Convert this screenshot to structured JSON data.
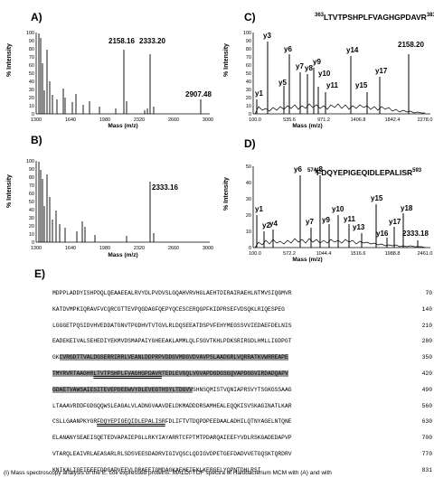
{
  "panels": {
    "A": {
      "letter": "A)",
      "ylabel": "% Intensity",
      "xlabel": "Mass (m/z)",
      "xticks": [
        "1300",
        "1640",
        "1980",
        "2320",
        "2660",
        "3000"
      ],
      "yticks": [
        "0",
        "10",
        "20",
        "30",
        "40",
        "50",
        "60",
        "70",
        "80",
        "90",
        "100"
      ],
      "labels": [
        "2158.16",
        "2333.20",
        "2907.48"
      ]
    },
    "B": {
      "letter": "B)",
      "ylabel": "% Intensity",
      "xlabel": "Mass (m/z)",
      "xticks": [
        "1300",
        "1640",
        "1980",
        "2320",
        "2660",
        "3000"
      ],
      "yticks": [
        "0",
        "10",
        "20",
        "30",
        "40",
        "50",
        "60",
        "70",
        "80",
        "90",
        "100"
      ],
      "labels": [
        "2333.16"
      ]
    },
    "C": {
      "letter": "C)",
      "title_start": "363",
      "title_seq": "LTVTPSHPLFVAGHGPDAVR",
      "title_end": "383",
      "ylabel": "% Intensity",
      "xlabel": "Mass (m/z)",
      "xticks": [
        "100.0",
        "535.6",
        "971.2",
        "1406.8",
        "1842.4",
        "2278.0"
      ],
      "yticks": [
        "0",
        "10",
        "20",
        "30",
        "40",
        "50",
        "60",
        "70",
        "80",
        "90",
        "100"
      ],
      "labels": [
        "y1",
        "y3",
        "y5",
        "y6",
        "y7",
        "y8",
        "y9",
        "y10",
        "y11",
        "y14",
        "y15",
        "y17",
        "2158.20"
      ]
    },
    "D": {
      "letter": "D)",
      "title_start": "574",
      "title_seq": "FDQYEPIGEQIDLEPALISR",
      "title_end": "593",
      "ylabel": "% Intensity",
      "xlabel": "Mass (m/z)",
      "xticks": [
        "100.0",
        "572.2",
        "1044.4",
        "1516.6",
        "1988.8",
        "2461.0"
      ],
      "yticks": [
        "0",
        "10",
        "20",
        "30",
        "40",
        "50"
      ],
      "labels": [
        "y1",
        "y2",
        "y4",
        "y6",
        "y7",
        "y8",
        "y9",
        "y10",
        "y11",
        "y13",
        "y15",
        "y16",
        "y17",
        "y18",
        "2333.18"
      ]
    }
  },
  "sequence": {
    "letter": "E)",
    "lines": [
      {
        "text": "MDPPLADDYISHPDQLQEAAEEALRVYDLPVDVSLGQAHVRVHGLAEHTDIRAIRAEHLNTMVSIQGMVR",
        "num": "70"
      },
      {
        "text": "KATDVMPKIQRAVFVCQRCGTTEVPQGDAGFQEPYQCESCERQGPFKIDPRSEFVDSQKLRIQESPEG",
        "num": "140"
      },
      {
        "text": "LGGGETPQSIDVHVEDDATGNVTPGDHVTVTGVLRLDQSEEATDSPVFEHYMEGSSVVIEDAEFDELNIS",
        "num": "210"
      },
      {
        "text": "EADEKEIVALSEHEDIYEKMVDSMAPAIYGHEEAKLAMMLQLFSGVTKHLPDKSRIRGDLHMLLIGDPGT",
        "num": "280"
      },
      {
        "text": "GKCVRGDTTVALDGSERRIRRLVEANLDDPRPVDDGVMDGVDVAVPSLAADGRLVQRRATKVWRREAPE",
        "num": "350"
      },
      {
        "text": "TMYRVRTAAGHRLTVTPSHPLFVAGHGPDAVRTEDLEVGQLVGVAPDGDGSGQVAPDGGVIRDADQAPV",
        "num": "420"
      },
      {
        "text": "GDAETVAWSAIESITEVEPDEEWVYDLEVEGTHSYLTDGVVSHNSQMISTVQNIAPRSVYTSGKGSSAAG",
        "num": "490"
      },
      {
        "text": "LTAAAVRDDFGDGQQWSLEAGALVLADNGVAAVDELDKMADDDRSAMHEALEQQKISVSKAGINATLKAR",
        "num": "560"
      },
      {
        "text": "CSLLGAANPKYGRFDQYEPIGEQIDLEPALISRFDLIFTVTDQPDPEEDAALADHILQTNYAGELNTQNE",
        "num": "630"
      },
      {
        "text": "ELANANYSEAEISQETEDVAPAIEPGLLRKYIAYARRTCFPTMTPDARQAIEEFYVDLRSKGADEDAPVP",
        "num": "700"
      },
      {
        "text": "VTARQLEAIVRLAEASARLRLSDSVEESDADRVIGIVQSCLQDIGVDPETGEFDADVVETGQSKTQRDRV",
        "num": "770"
      },
      {
        "text": "KNIKALIGEIEEEFDDGAPVEEVLDRAEEIGMDAGKAEHEIEKLKERGELYQPNTDHLRSI",
        "num": "831"
      }
    ]
  },
  "caption": "(I)  Mass spectroscopy analysis of the E. coli expressed proteins. MALDI-TOF spectra of Halobacterium MCM with (A) and with"
}
